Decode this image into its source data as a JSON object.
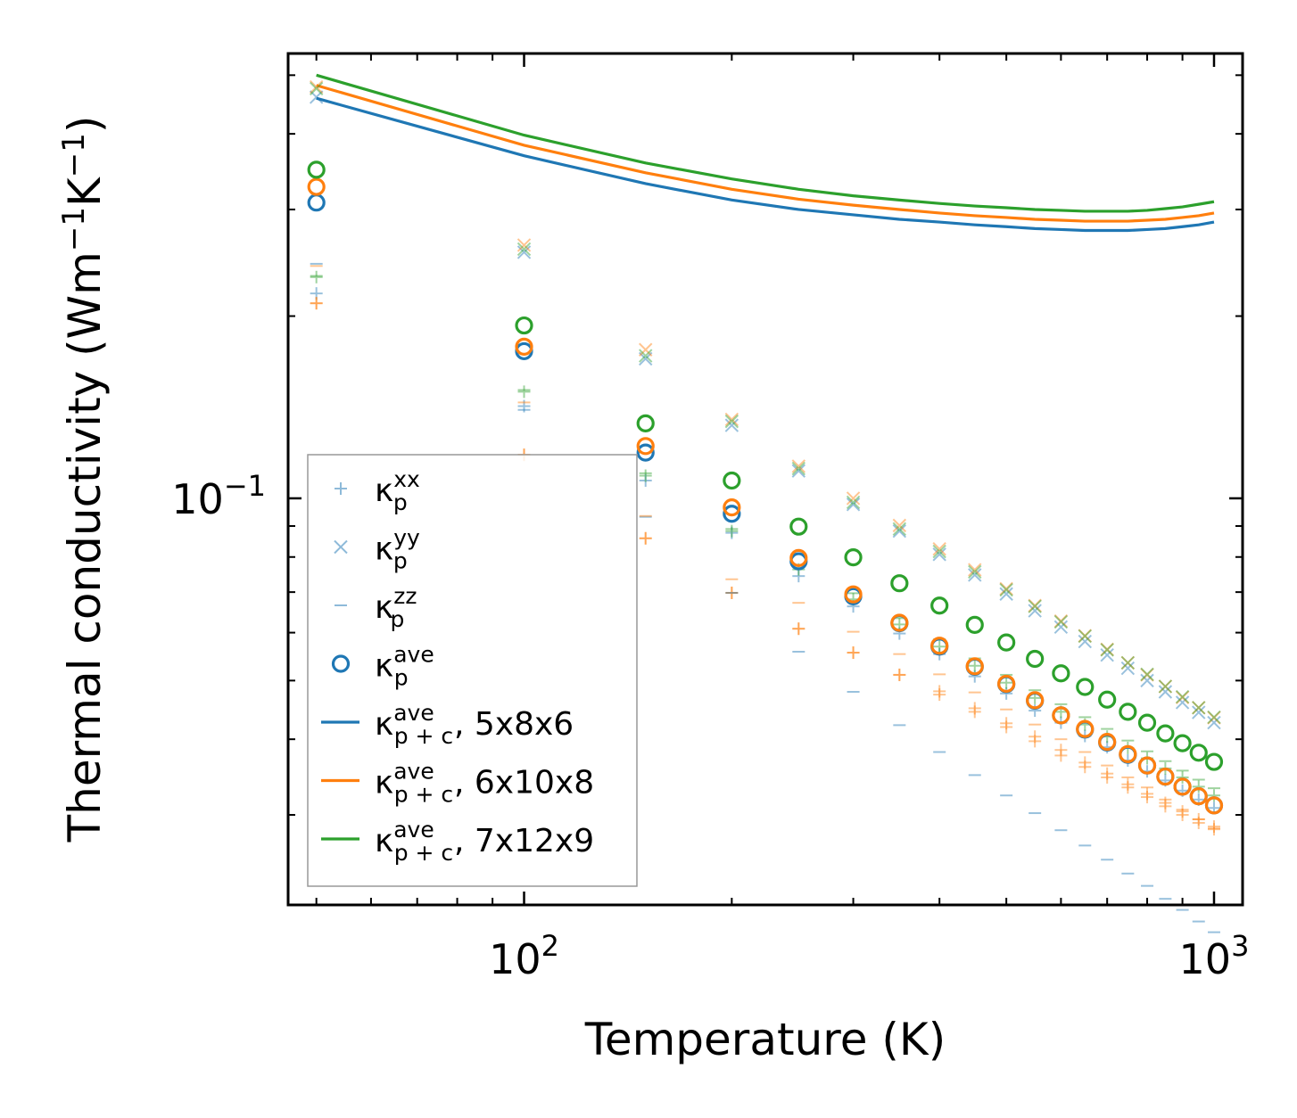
{
  "chart_data": {
    "type": "scatter",
    "title": "",
    "xlabel": "Temperature (K)",
    "ylabel_main": "Thermal conductivity (Wm",
    "ylabel_sup1": "−1",
    "ylabel_mid": "K",
    "ylabel_sup2": "−1",
    "ylabel_end": ")",
    "xscale": "log",
    "yscale": "log",
    "xlim": [
      45.5,
      1100
    ],
    "ylim": [
      0.0213,
      0.543
    ],
    "x_ticks": [
      {
        "value": 100,
        "base": "10",
        "exp": "2"
      },
      {
        "value": 1000,
        "base": "10",
        "exp": "3"
      }
    ],
    "y_ticks": [
      {
        "value": 0.1,
        "base": "10",
        "exp": "−1"
      }
    ],
    "x": [
      50,
      100,
      150,
      200,
      250,
      300,
      350,
      400,
      450,
      500,
      550,
      600,
      650,
      700,
      750,
      800,
      850,
      900,
      950,
      1000
    ],
    "colors": {
      "blue": "#1f77b4",
      "orange": "#ff7f0e",
      "green": "#2ca02c"
    },
    "series": [
      {
        "name": "κp^xx",
        "role": "xx",
        "marker": "plus",
        "color": "#1f77b4",
        "values": [
          0.218,
          0.142,
          0.107,
          0.0877,
          0.0744,
          0.0663,
          0.0598,
          0.0553,
          0.0508,
          0.0476,
          0.0446,
          0.0426,
          0.0405,
          0.0388,
          0.0369,
          0.0354,
          0.0342,
          0.0329,
          0.0318,
          0.0308
        ]
      },
      {
        "name": "κp^yy",
        "role": "yy",
        "marker": "x",
        "color": "#1f77b4",
        "values": [
          0.46,
          0.255,
          0.17,
          0.132,
          0.111,
          0.0977,
          0.0883,
          0.0808,
          0.0747,
          0.0695,
          0.0652,
          0.0613,
          0.058,
          0.0551,
          0.0524,
          0.05,
          0.0479,
          0.046,
          0.0443,
          0.0426
        ]
      },
      {
        "name": "κp^zz",
        "role": "zz",
        "marker": "dash",
        "color": "#1f77b4",
        "values": [
          0.244,
          0.14,
          0.0932,
          0.0698,
          0.0558,
          0.0479,
          0.0422,
          0.0381,
          0.0349,
          0.0323,
          0.0302,
          0.0283,
          0.0267,
          0.0253,
          0.024,
          0.0229,
          0.0218,
          0.0209,
          0.02,
          0.0192
        ]
      },
      {
        "name": "κp^ave",
        "role": "ave",
        "marker": "circle",
        "color": "#1f77b4",
        "values": [
          0.308,
          0.175,
          0.119,
          0.0943,
          0.0787,
          0.0689,
          0.0622,
          0.0569,
          0.0527,
          0.0493,
          0.0463,
          0.0438,
          0.0415,
          0.0395,
          0.0377,
          0.0362,
          0.0347,
          0.0334,
          0.0322,
          0.0311
        ]
      },
      {
        "name": "κp^xx 6x10x8",
        "role": "xx",
        "marker": "plus",
        "color": "#ff7f0e",
        "values": [
          0.21,
          0.118,
          0.0859,
          0.0698,
          0.0609,
          0.0556,
          0.0511,
          0.0474,
          0.0444,
          0.0419,
          0.0397,
          0.0376,
          0.036,
          0.0346,
          0.0333,
          0.0321,
          0.031,
          0.03,
          0.0291,
          0.0284
        ]
      },
      {
        "name": "κp^xx 6x10x8 b",
        "role": "xx",
        "marker": "plus",
        "color": "#ff7f0e",
        "values": [
          0.21,
          0.118,
          0.0859,
          0.0698,
          0.0609,
          0.0556,
          0.0511,
          0.048,
          0.045,
          0.0425,
          0.0404,
          0.0384,
          0.0366,
          0.0351,
          0.0337,
          0.0325,
          0.0314,
          0.0304,
          0.0295,
          0.0287
        ]
      },
      {
        "name": "κp^yy 6x10x8",
        "role": "yy",
        "marker": "x",
        "color": "#ff7f0e",
        "values": [
          0.478,
          0.262,
          0.176,
          0.135,
          0.113,
          0.1,
          0.0902,
          0.0825,
          0.0762,
          0.0709,
          0.0665,
          0.0627,
          0.0593,
          0.0563,
          0.0535,
          0.0511,
          0.0489,
          0.0469,
          0.0451,
          0.0434
        ]
      },
      {
        "name": "κp^zz 6x10x8",
        "role": "zz",
        "marker": "dash",
        "color": "#ff7f0e",
        "values": [
          0.242,
          0.144,
          0.0935,
          0.0735,
          0.0672,
          0.0602,
          0.0553,
          0.0512,
          0.0478,
          0.0448,
          0.0423,
          0.04,
          0.0381,
          0.0362,
          0.0346,
          0.0333,
          0.0318,
          0.0306,
          0.0295,
          0.0285
        ]
      },
      {
        "name": "κp^ave 6x10x8",
        "role": "ave",
        "marker": "circle",
        "color": "#ff7f0e",
        "values": [
          0.327,
          0.178,
          0.122,
          0.0966,
          0.0797,
          0.0694,
          0.0623,
          0.0571,
          0.0528,
          0.0494,
          0.0464,
          0.0438,
          0.0416,
          0.0396,
          0.0378,
          0.0362,
          0.0347,
          0.0334,
          0.0322,
          0.0311
        ]
      },
      {
        "name": "κp^xx 7x12x9",
        "role": "xx",
        "marker": "plus",
        "color": "#2ca02c",
        "values": [
          0.232,
          0.15,
          0.109,
          0.0883,
          0.0763,
          0.0681,
          0.0619,
          0.0569,
          0.0529,
          0.0496,
          0.0468,
          0.0444,
          0.0423,
          0.0404,
          0.0387,
          0.0372,
          0.0358,
          0.0346,
          0.0334,
          0.0323
        ]
      },
      {
        "name": "κp^yy 7x12x9",
        "role": "yy",
        "marker": "x",
        "color": "#2ca02c",
        "values": [
          0.475,
          0.258,
          0.172,
          0.134,
          0.112,
          0.0985,
          0.089,
          0.0817,
          0.0756,
          0.0706,
          0.0663,
          0.0625,
          0.0592,
          0.0562,
          0.0535,
          0.0512,
          0.0489,
          0.047,
          0.0451,
          0.0435
        ]
      },
      {
        "name": "κp^zz 7x12x9",
        "role": "zz",
        "marker": "dash",
        "color": "#2ca02c",
        "values": [
          0.233,
          0.151,
          0.11,
          0.089,
          0.0775,
          0.0697,
          0.0634,
          0.0585,
          0.0544,
          0.0511,
          0.0482,
          0.0457,
          0.0435,
          0.0416,
          0.0398,
          0.0382,
          0.0368,
          0.0355,
          0.0343,
          0.0332
        ]
      },
      {
        "name": "κp^ave 7x12x9",
        "role": "ave",
        "marker": "circle",
        "color": "#2ca02c",
        "values": [
          0.349,
          0.193,
          0.133,
          0.107,
          0.0898,
          0.0799,
          0.0724,
          0.0665,
          0.0618,
          0.0578,
          0.0543,
          0.0514,
          0.0488,
          0.0465,
          0.0444,
          0.0426,
          0.0409,
          0.0394,
          0.038,
          0.0367
        ]
      },
      {
        "name": "κp+c^ave, 5x8x6",
        "role": "line",
        "marker": "line",
        "color": "#1f77b4",
        "values": [
          0.458,
          0.368,
          0.331,
          0.311,
          0.3,
          0.294,
          0.289,
          0.286,
          0.283,
          0.281,
          0.279,
          0.278,
          0.277,
          0.277,
          0.277,
          0.278,
          0.279,
          0.281,
          0.283,
          0.286
        ]
      },
      {
        "name": "κp+c^ave, 6x10x8",
        "role": "line",
        "marker": "line",
        "color": "#ff7f0e",
        "values": [
          0.481,
          0.383,
          0.345,
          0.324,
          0.312,
          0.305,
          0.3,
          0.296,
          0.293,
          0.291,
          0.289,
          0.288,
          0.287,
          0.287,
          0.287,
          0.288,
          0.289,
          0.291,
          0.293,
          0.296
        ]
      },
      {
        "name": "κp+c^ave, 7x12x9",
        "role": "line",
        "marker": "line",
        "color": "#2ca02c",
        "values": [
          0.5,
          0.398,
          0.358,
          0.337,
          0.324,
          0.316,
          0.311,
          0.307,
          0.304,
          0.302,
          0.3,
          0.299,
          0.298,
          0.298,
          0.298,
          0.299,
          0.301,
          0.303,
          0.306,
          0.309
        ]
      }
    ],
    "legend": {
      "placement": "lower-left",
      "entries": [
        {
          "symbol": "κ",
          "sub": "p",
          "sup": "xx",
          "suffix": "",
          "marker": "plus",
          "color": "#1f77b4",
          "alpha": 0.5
        },
        {
          "symbol": "κ",
          "sub": "p",
          "sup": "yy",
          "suffix": "",
          "marker": "x",
          "color": "#1f77b4",
          "alpha": 0.5
        },
        {
          "symbol": "κ",
          "sub": "p",
          "sup": "zz",
          "suffix": "",
          "marker": "dash",
          "color": "#1f77b4",
          "alpha": 0.5
        },
        {
          "symbol": "κ",
          "sub": "p",
          "sup": "ave",
          "suffix": "",
          "marker": "circle",
          "color": "#1f77b4",
          "alpha": 1
        },
        {
          "symbol": "κ",
          "sub": "p + c",
          "sup": "ave",
          "suffix": ", 5x8x6",
          "marker": "line",
          "color": "#1f77b4",
          "alpha": 1
        },
        {
          "symbol": "κ",
          "sub": "p + c",
          "sup": "ave",
          "suffix": ", 6x10x8",
          "marker": "line",
          "color": "#ff7f0e",
          "alpha": 1
        },
        {
          "symbol": "κ",
          "sub": "p + c",
          "sup": "ave",
          "suffix": ", 7x12x9",
          "marker": "line",
          "color": "#2ca02c",
          "alpha": 1
        }
      ]
    }
  }
}
